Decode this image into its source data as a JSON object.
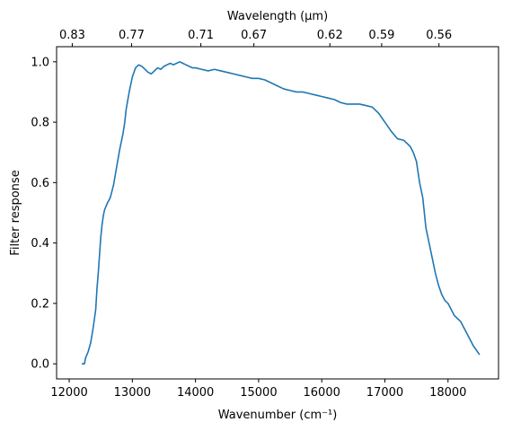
{
  "chart_data": {
    "type": "line",
    "xlabel": "Wavenumber (cm⁻¹)",
    "ylabel": "Filter response",
    "top_xlabel": "Wavelength (μm)",
    "xlim": [
      11800,
      18800
    ],
    "ylim": [
      -0.05,
      1.05
    ],
    "x_ticks": [
      12000,
      13000,
      14000,
      15000,
      16000,
      17000,
      18000
    ],
    "x_tick_labels": [
      "12000",
      "13000",
      "14000",
      "15000",
      "16000",
      "17000",
      "18000"
    ],
    "y_ticks": [
      0.0,
      0.2,
      0.4,
      0.6,
      0.8,
      1.0
    ],
    "y_tick_labels": [
      "0.0",
      "0.2",
      "0.4",
      "0.6",
      "0.8",
      "1.0"
    ],
    "top_ticks": [
      {
        "label": "0.83",
        "wavenumber": 12048
      },
      {
        "label": "0.77",
        "wavenumber": 12987
      },
      {
        "label": "0.71",
        "wavenumber": 14085
      },
      {
        "label": "0.67",
        "wavenumber": 14925
      },
      {
        "label": "0.62",
        "wavenumber": 16129
      },
      {
        "label": "0.59",
        "wavenumber": 16949
      },
      {
        "label": "0.56",
        "wavenumber": 17857
      }
    ],
    "line_color": "#1f77b4",
    "grid": false,
    "series": [
      {
        "x": [
          12200,
          12240,
          12260,
          12300,
          12340,
          12380,
          12420,
          12440,
          12460,
          12480,
          12500,
          12520,
          12540,
          12560,
          12600,
          12650,
          12700,
          12750,
          12800,
          12850,
          12880,
          12900,
          12950,
          13000,
          13050,
          13100,
          13150,
          13200,
          13250,
          13300,
          13350,
          13400,
          13450,
          13500,
          13550,
          13600,
          13650,
          13700,
          13750,
          13800,
          13850,
          13900,
          13950,
          14000,
          14100,
          14200,
          14300,
          14400,
          14500,
          14600,
          14700,
          14800,
          14900,
          15000,
          15100,
          15200,
          15300,
          15400,
          15500,
          15600,
          15700,
          15800,
          15900,
          16000,
          16100,
          16200,
          16300,
          16400,
          16500,
          16600,
          16700,
          16800,
          16900,
          17000,
          17100,
          17200,
          17300,
          17400,
          17450,
          17500,
          17550,
          17600,
          17650,
          17700,
          17750,
          17800,
          17850,
          17900,
          17950,
          18000,
          18100,
          18200,
          18300,
          18400,
          18500
        ],
        "y": [
          0.0,
          0.0,
          0.02,
          0.04,
          0.07,
          0.12,
          0.18,
          0.25,
          0.3,
          0.36,
          0.42,
          0.46,
          0.49,
          0.51,
          0.53,
          0.55,
          0.59,
          0.65,
          0.71,
          0.76,
          0.8,
          0.84,
          0.9,
          0.95,
          0.98,
          0.99,
          0.985,
          0.975,
          0.965,
          0.96,
          0.97,
          0.98,
          0.975,
          0.985,
          0.99,
          0.995,
          0.99,
          0.995,
          1.0,
          0.995,
          0.99,
          0.985,
          0.98,
          0.98,
          0.975,
          0.97,
          0.975,
          0.97,
          0.965,
          0.96,
          0.955,
          0.95,
          0.945,
          0.945,
          0.94,
          0.93,
          0.92,
          0.91,
          0.905,
          0.9,
          0.9,
          0.895,
          0.89,
          0.885,
          0.88,
          0.875,
          0.865,
          0.86,
          0.86,
          0.86,
          0.855,
          0.85,
          0.83,
          0.8,
          0.77,
          0.745,
          0.74,
          0.72,
          0.7,
          0.67,
          0.6,
          0.55,
          0.45,
          0.4,
          0.35,
          0.3,
          0.26,
          0.23,
          0.21,
          0.2,
          0.16,
          0.14,
          0.1,
          0.06,
          0.03
        ]
      }
    ]
  }
}
